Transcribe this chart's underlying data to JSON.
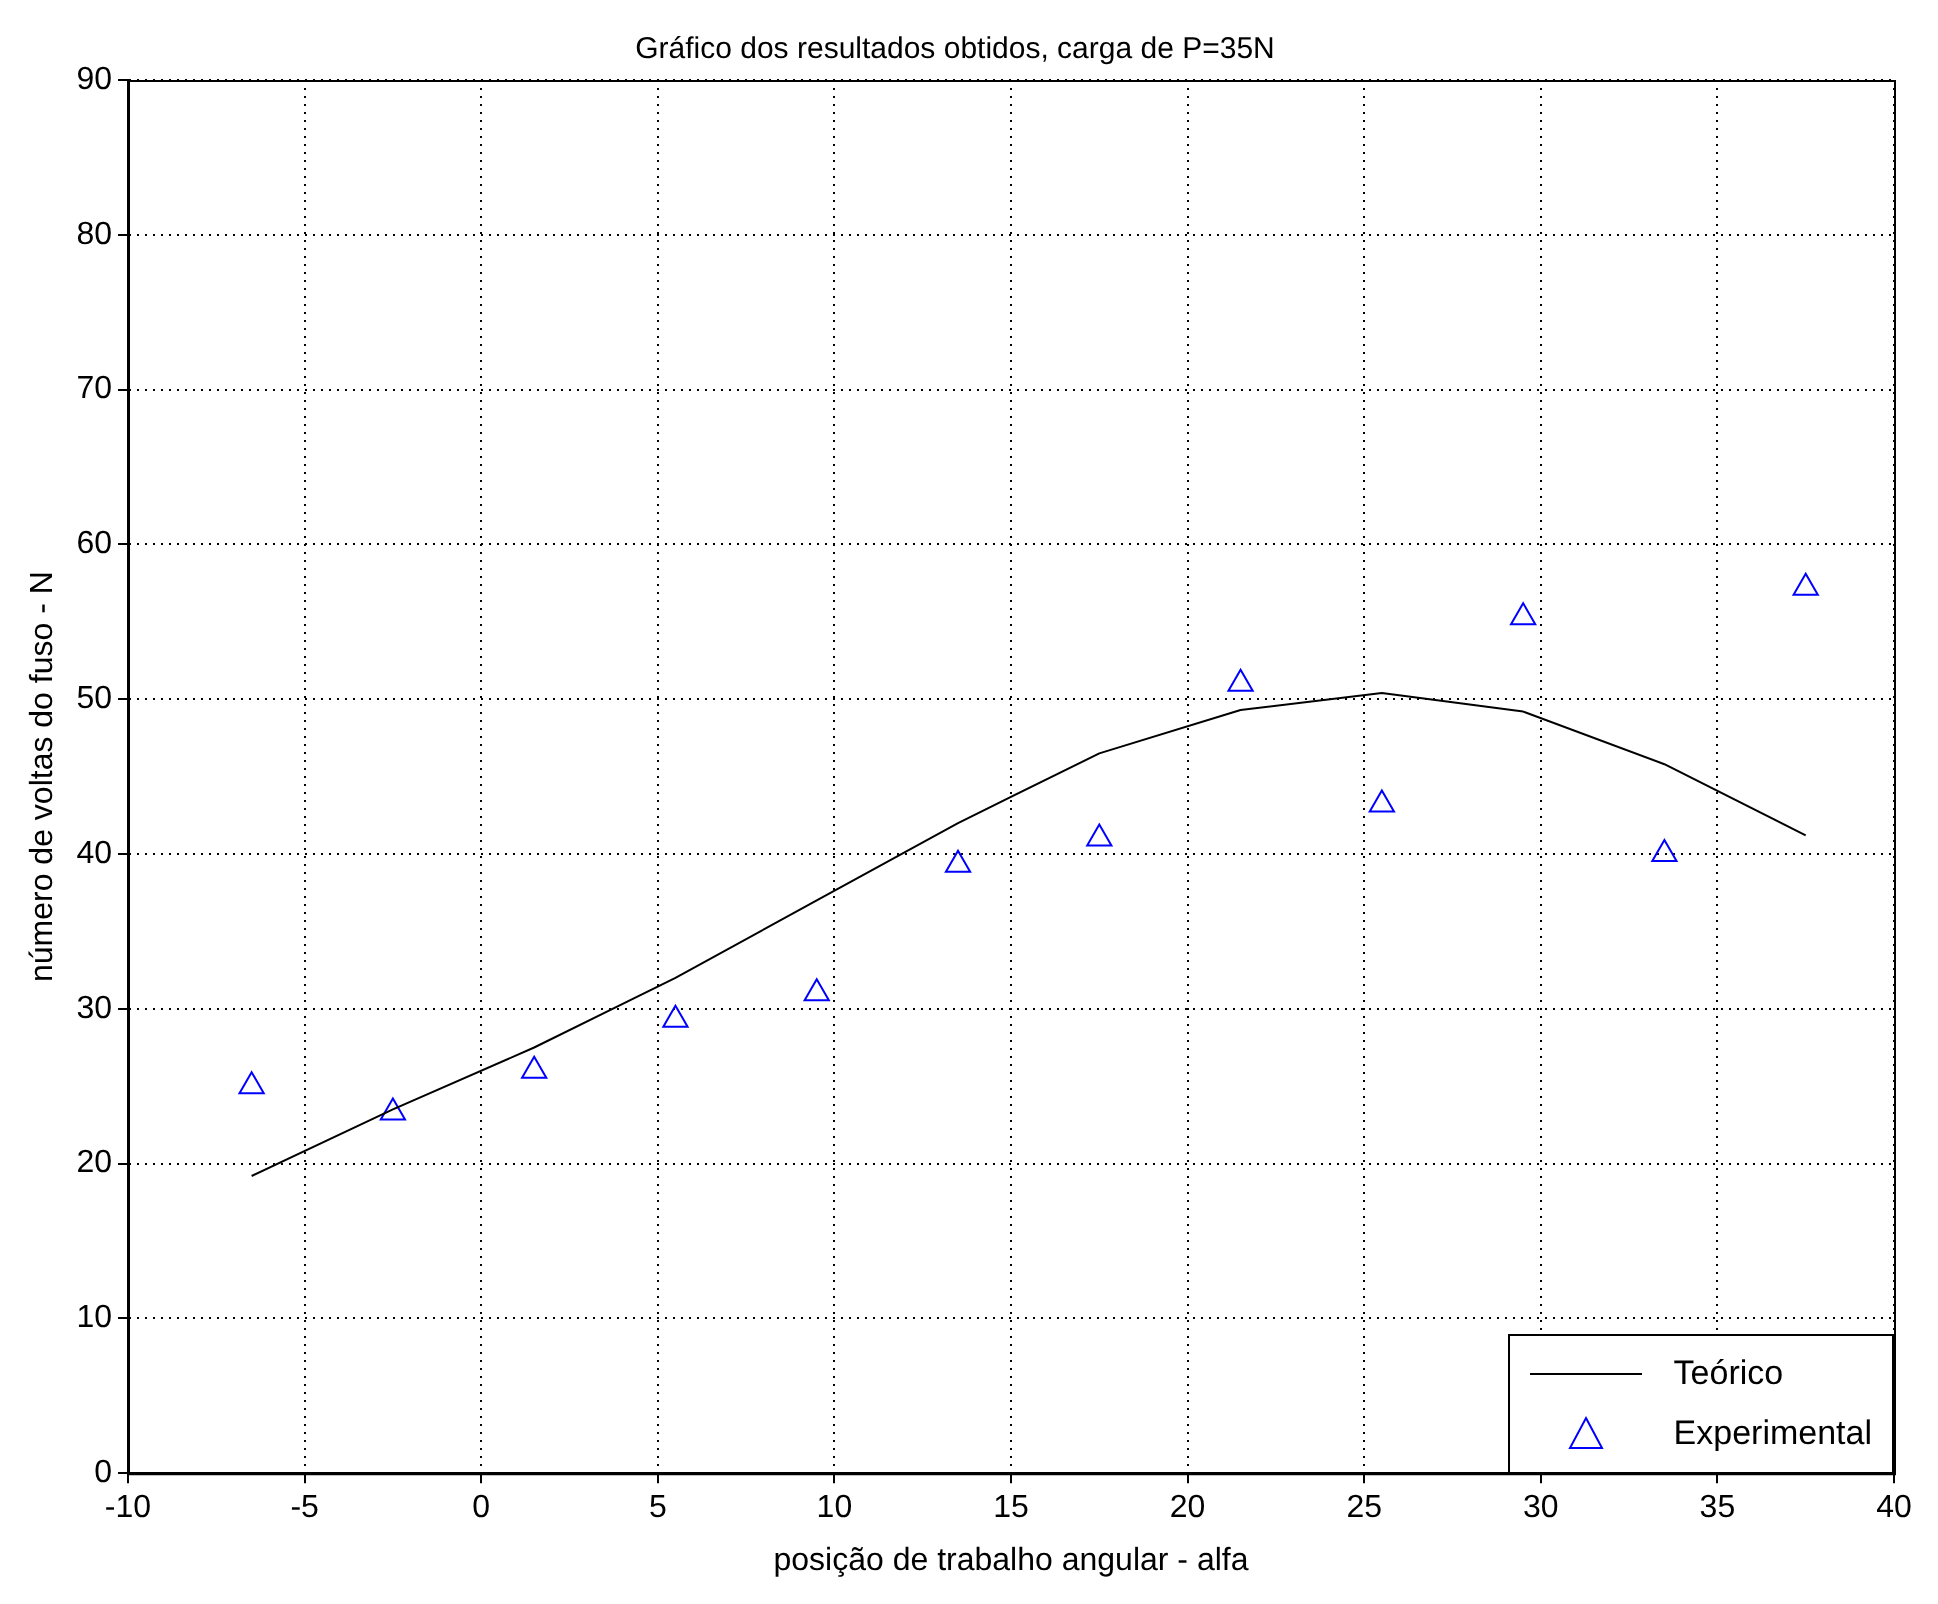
{
  "chart_data": {
    "type": "line",
    "title": "Gráfico dos resultados obtidos, carga de P=35N",
    "xlabel": "posição de trabalho angular - alfa",
    "ylabel": "número de voltas do fuso - N",
    "x": [
      -6.5,
      -2.5,
      1.5,
      5.5,
      9.5,
      13.5,
      17.5,
      21.5,
      25.5,
      29.5,
      33.5,
      37.5
    ],
    "series": [
      {
        "name": "Teórico",
        "color": "#000000",
        "marker": "none",
        "line_style": "solid",
        "values": [
          19.2,
          23.5,
          27.5,
          32,
          37,
          42,
          46.5,
          49.3,
          50.4,
          49.2,
          45.8,
          41.2
        ]
      },
      {
        "name": "Experimental",
        "type": "scatter",
        "color": "#0000ff",
        "marker": "triangle",
        "values": [
          25,
          23.3,
          26,
          29.3,
          31,
          39.3,
          41,
          51,
          43.2,
          55.3,
          40,
          57.2
        ]
      }
    ],
    "xlim": [
      -10,
      40
    ],
    "xticks": [
      -10,
      -5,
      0,
      5,
      10,
      15,
      20,
      25,
      30,
      35,
      40
    ],
    "ylim": [
      0,
      90
    ],
    "yticks": [
      0,
      10,
      20,
      30,
      40,
      50,
      60,
      70,
      80,
      90
    ],
    "grid": true,
    "legend": "bottom right"
  }
}
